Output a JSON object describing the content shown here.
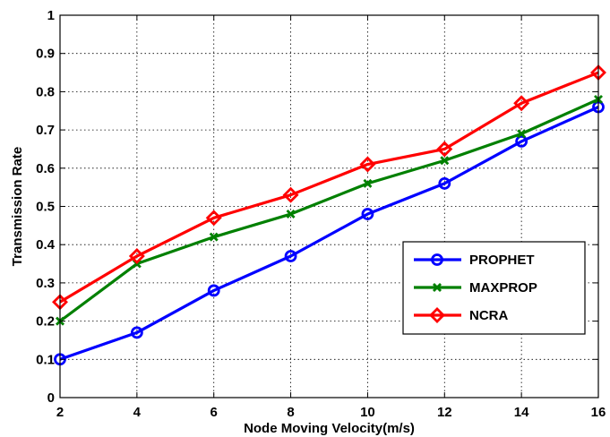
{
  "chart_data": {
    "type": "line",
    "title": "",
    "xlabel": "Node Moving Velocity(m/s)",
    "ylabel": "Transmission Rate",
    "x": [
      2,
      4,
      6,
      8,
      10,
      12,
      14,
      16
    ],
    "xlim": [
      2,
      16
    ],
    "ylim": [
      0,
      1
    ],
    "xticks": [
      "2",
      "4",
      "6",
      "8",
      "10",
      "12",
      "14",
      "16"
    ],
    "yticks": [
      "0",
      "0.1",
      "0.2",
      "0.3",
      "0.4",
      "0.5",
      "0.6",
      "0.7",
      "0.8",
      "0.9",
      "1"
    ],
    "grid": true,
    "legend_position": "right",
    "series": [
      {
        "name": "PROPHET",
        "color": "#0000ff",
        "marker": "circle",
        "values": [
          0.1,
          0.17,
          0.28,
          0.37,
          0.48,
          0.56,
          0.67,
          0.76
        ]
      },
      {
        "name": "MAXPROP",
        "color": "#008000",
        "marker": "x",
        "values": [
          0.2,
          0.35,
          0.42,
          0.48,
          0.56,
          0.62,
          0.69,
          0.78
        ]
      },
      {
        "name": "NCRA",
        "color": "#ff0000",
        "marker": "diamond",
        "values": [
          0.25,
          0.37,
          0.47,
          0.53,
          0.61,
          0.65,
          0.77,
          0.85
        ]
      }
    ]
  }
}
